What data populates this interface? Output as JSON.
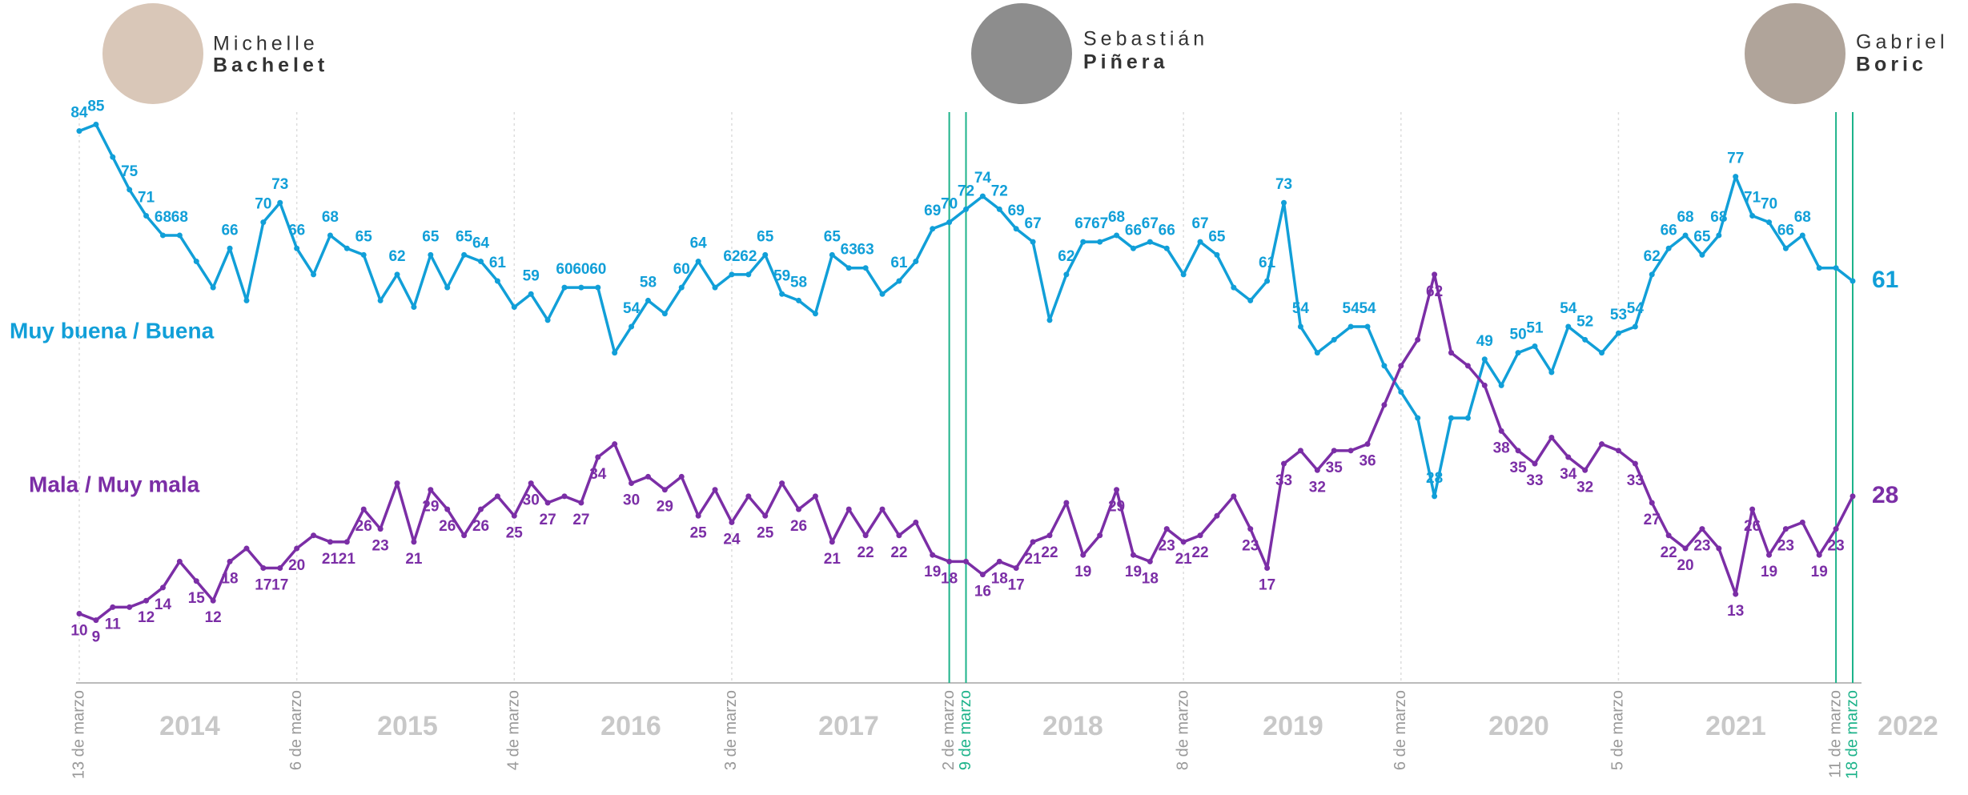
{
  "chart_data": {
    "type": "line",
    "presidents": [
      {
        "first": "Michelle",
        "last": "Bachelet"
      },
      {
        "first": "Sebastián",
        "last": "Piñera"
      },
      {
        "first": "Gabriel",
        "last": "Boric"
      }
    ],
    "categories": [
      "13 de marzo",
      null,
      null,
      null,
      null,
      null,
      null,
      null,
      null,
      null,
      null,
      null,
      null,
      "6 de marzo",
      null,
      null,
      null,
      null,
      null,
      null,
      null,
      null,
      null,
      null,
      null,
      null,
      "4 de marzo",
      null,
      null,
      null,
      null,
      null,
      null,
      null,
      null,
      null,
      null,
      null,
      null,
      "3 de marzo",
      null,
      null,
      null,
      null,
      null,
      null,
      null,
      null,
      null,
      null,
      null,
      null,
      "2 de marzo",
      "9 de marzo",
      null,
      null,
      null,
      null,
      null,
      null,
      null,
      null,
      null,
      null,
      null,
      null,
      "8 de marzo",
      null,
      null,
      null,
      null,
      null,
      null,
      null,
      null,
      null,
      null,
      null,
      null,
      "6 de marzo",
      null,
      null,
      null,
      null,
      null,
      null,
      null,
      null,
      null,
      null,
      null,
      null,
      "5 de marzo",
      null,
      null,
      null,
      null,
      null,
      null,
      null,
      null,
      null,
      null,
      null,
      null,
      "11 de marzo",
      "18 de marzo"
    ],
    "year_labels": [
      "2014",
      "2015",
      "2016",
      "2017",
      "2018",
      "2019",
      "2020",
      "2021",
      "2022"
    ],
    "ylim": [
      0,
      88
    ],
    "series": [
      {
        "name": "Muy buena / Buena",
        "color": "#119fd8",
        "values": [
          84,
          85,
          80,
          75,
          71,
          68,
          68,
          64,
          60,
          66,
          58,
          70,
          73,
          66,
          62,
          68,
          66,
          65,
          58,
          62,
          57,
          65,
          60,
          65,
          64,
          61,
          57,
          59,
          55,
          60,
          60,
          60,
          50,
          54,
          58,
          56,
          60,
          64,
          60,
          62,
          62,
          65,
          59,
          58,
          56,
          65,
          63,
          63,
          59,
          61,
          64,
          69,
          70,
          72,
          74,
          72,
          69,
          67,
          55,
          62,
          67,
          67,
          68,
          66,
          67,
          66,
          62,
          67,
          65,
          60,
          58,
          61,
          73,
          54,
          50,
          52,
          54,
          54,
          48,
          44,
          40,
          28,
          40,
          40,
          49,
          45,
          50,
          51,
          47,
          54,
          52,
          50,
          53,
          54,
          62,
          66,
          68,
          65,
          68,
          77,
          71,
          70,
          66,
          68,
          63,
          63,
          61
        ]
      },
      {
        "name": "Mala / Muy mala",
        "color": "#7b2ea6",
        "values": [
          10,
          9,
          11,
          11,
          12,
          14,
          18,
          15,
          12,
          18,
          20,
          17,
          17,
          20,
          22,
          21,
          21,
          26,
          23,
          30,
          21,
          29,
          26,
          22,
          26,
          28,
          25,
          30,
          27,
          28,
          27,
          34,
          36,
          30,
          31,
          29,
          31,
          25,
          29,
          24,
          28,
          25,
          30,
          26,
          28,
          21,
          26,
          22,
          26,
          22,
          24,
          19,
          18,
          18,
          16,
          18,
          17,
          21,
          22,
          27,
          19,
          22,
          29,
          19,
          18,
          23,
          21,
          22,
          25,
          28,
          23,
          17,
          33,
          35,
          32,
          35,
          35,
          36,
          42,
          48,
          52,
          62,
          50,
          48,
          45,
          38,
          35,
          33,
          37,
          34,
          32,
          36,
          35,
          33,
          27,
          22,
          20,
          23,
          20,
          13,
          26,
          19,
          23,
          24,
          19,
          23,
          28
        ]
      }
    ]
  }
}
